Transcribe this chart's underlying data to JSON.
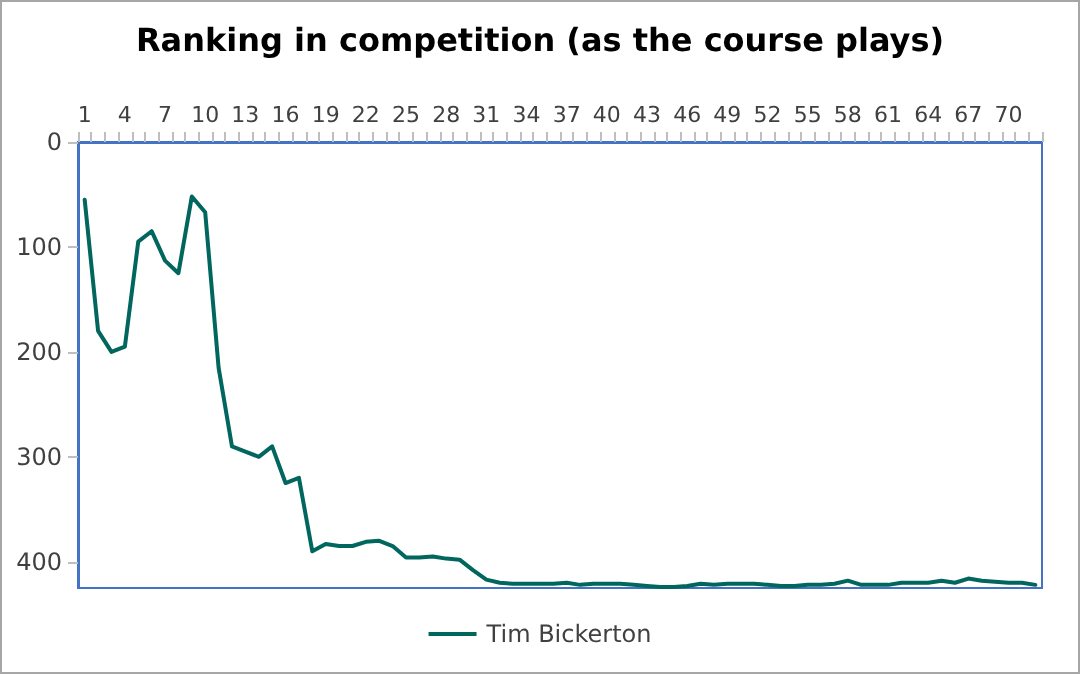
{
  "chart_data": {
    "type": "line",
    "title": "Ranking in competition (as the course plays)",
    "categories": [
      "1",
      null,
      null,
      "4",
      null,
      null,
      "7",
      null,
      null,
      "10",
      null,
      null,
      "13",
      null,
      null,
      "16",
      null,
      null,
      "19",
      null,
      null,
      "22",
      null,
      null,
      "25",
      null,
      null,
      "28",
      null,
      null,
      "31",
      null,
      null,
      "34",
      null,
      null,
      "37",
      null,
      null,
      "40",
      null,
      null,
      "43",
      null,
      null,
      "46",
      null,
      null,
      "49",
      null,
      null,
      "52",
      null,
      null,
      "55",
      null,
      null,
      "58",
      null,
      null,
      "61",
      null,
      null,
      "64",
      null,
      null,
      "67",
      null,
      null,
      "70",
      null,
      null
    ],
    "series": [
      {
        "name": "Tim Bickerton",
        "color": "#00665e",
        "values": [
          55,
          180,
          200,
          195,
          95,
          85,
          113,
          125,
          52,
          67,
          215,
          290,
          295,
          300,
          290,
          325,
          320,
          390,
          383,
          385,
          385,
          381,
          380,
          385,
          396,
          396,
          395,
          397,
          398,
          408,
          417,
          420,
          421,
          421,
          421,
          421,
          420,
          422,
          421,
          421,
          421,
          422,
          423,
          424,
          424,
          423,
          421,
          422,
          421,
          421,
          421,
          422,
          423,
          423,
          422,
          422,
          421,
          418,
          422,
          422,
          422,
          420,
          420,
          420,
          418,
          420,
          416,
          418,
          419,
          420,
          420,
          422
        ]
      }
    ],
    "ylim": [
      425,
      0
    ],
    "yticks": [
      0,
      100,
      200,
      300,
      400
    ],
    "grid": false,
    "legend": "bottom",
    "marker": "none",
    "line_style": "solid"
  }
}
